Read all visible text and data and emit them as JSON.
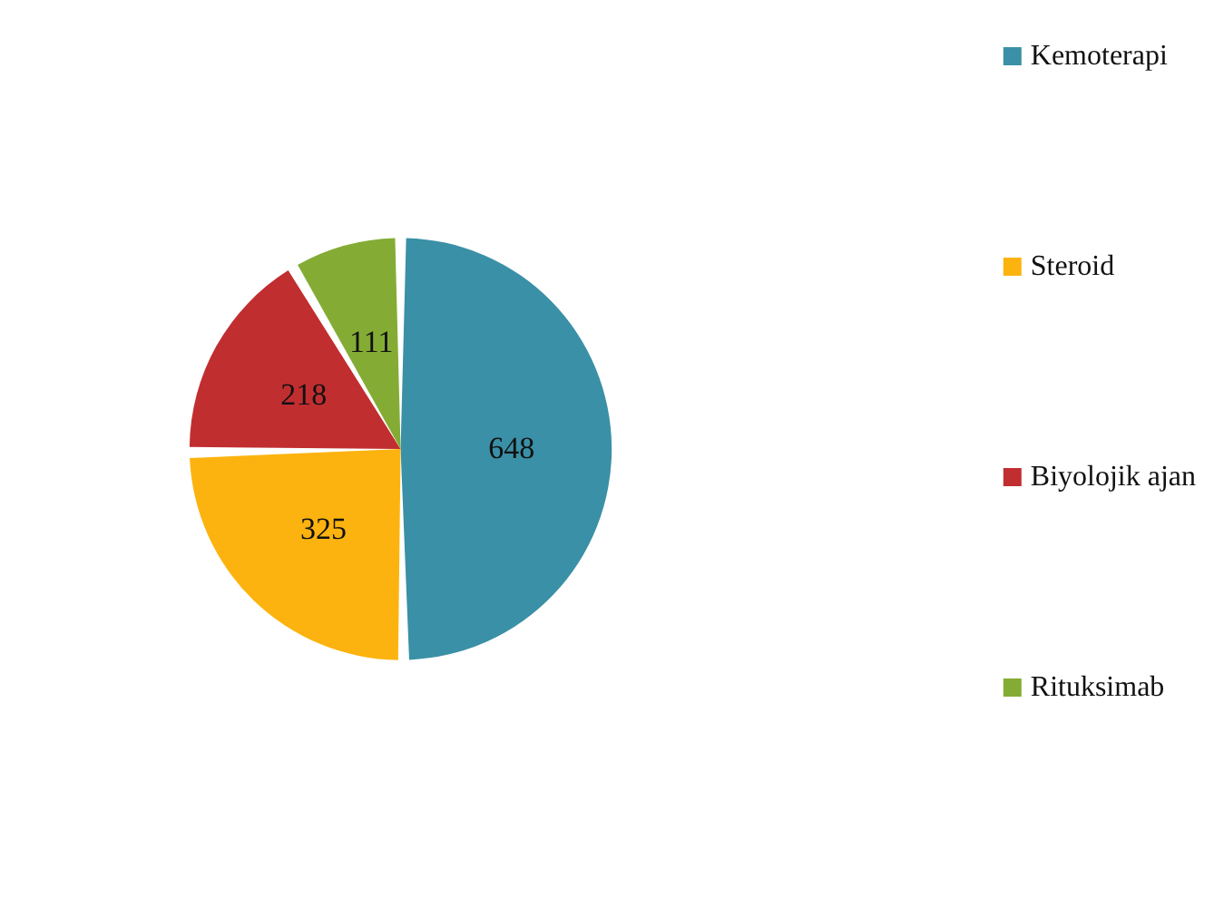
{
  "chart_data": {
    "type": "pie",
    "categories": [
      "Kemoterapi",
      "Steroid",
      "Biyolojik ajan",
      "Rituksimab"
    ],
    "values": [
      648,
      325,
      218,
      111
    ],
    "colors": [
      "#3a90a6",
      "#fdb30f",
      "#c12e30",
      "#84ac35"
    ],
    "data_labels": true,
    "legend": "right"
  }
}
